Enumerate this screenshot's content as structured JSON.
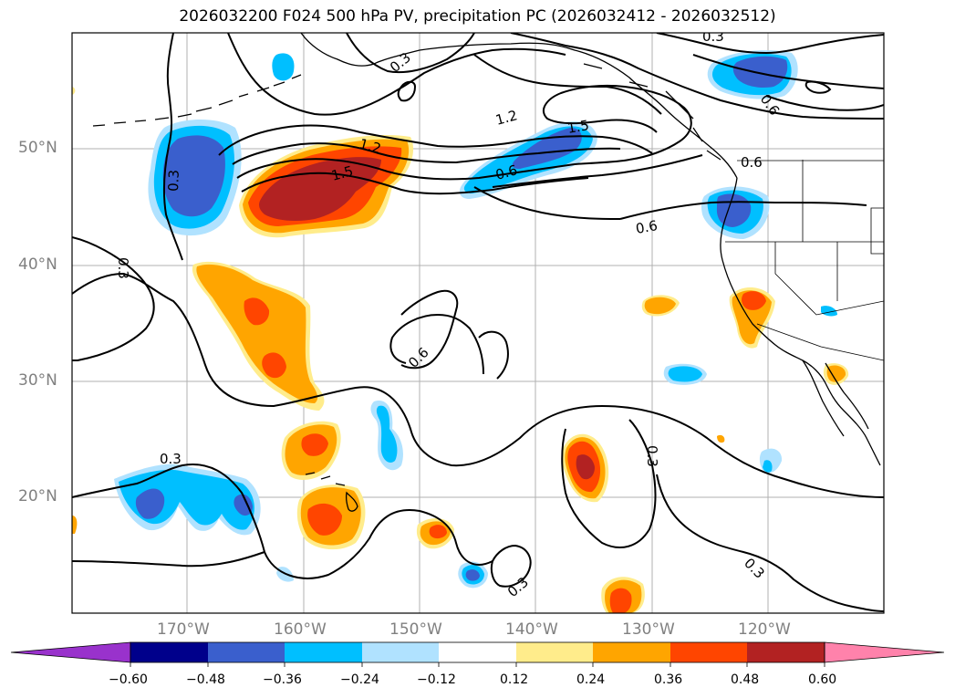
{
  "title": "2026032200 F024 500 hPa PV, precipitation PC (2026032412 - 2026032512)",
  "lat_labels": [
    "50°N",
    "40°N",
    "30°N",
    "20°N"
  ],
  "lon_labels": [
    "170°W",
    "160°W",
    "150°W",
    "140°W",
    "130°W",
    "120°W"
  ],
  "contour_labels": [
    "0.3",
    "0.3",
    "0.3",
    "0.3",
    "0.3",
    "0.3",
    "0.3",
    "0.6",
    "0.6",
    "0.6",
    "0.6",
    "1.2",
    "1.2",
    "1.5",
    "1.5",
    "0.3",
    "0.6"
  ],
  "colorbar": {
    "ticks": [
      "−0.60",
      "−0.48",
      "−0.36",
      "−0.24",
      "−0.12",
      "0.12",
      "0.24",
      "0.36",
      "0.48",
      "0.60"
    ],
    "colors": [
      "#9932cc",
      "#00008b",
      "#3a5fcd",
      "#00bfff",
      "#b0e2ff",
      "#ffffff",
      "#ffec8b",
      "#ffa500",
      "#ff4500",
      "#b22222",
      "#ff82ab"
    ]
  },
  "colors": {
    "blue_dark": "#3a5fcd",
    "blue_mid": "#00bfff",
    "blue_light": "#b0e2ff",
    "yellow": "#ffec8b",
    "orange": "#ffa500",
    "red": "#ff4500",
    "darkred": "#b22222"
  }
}
